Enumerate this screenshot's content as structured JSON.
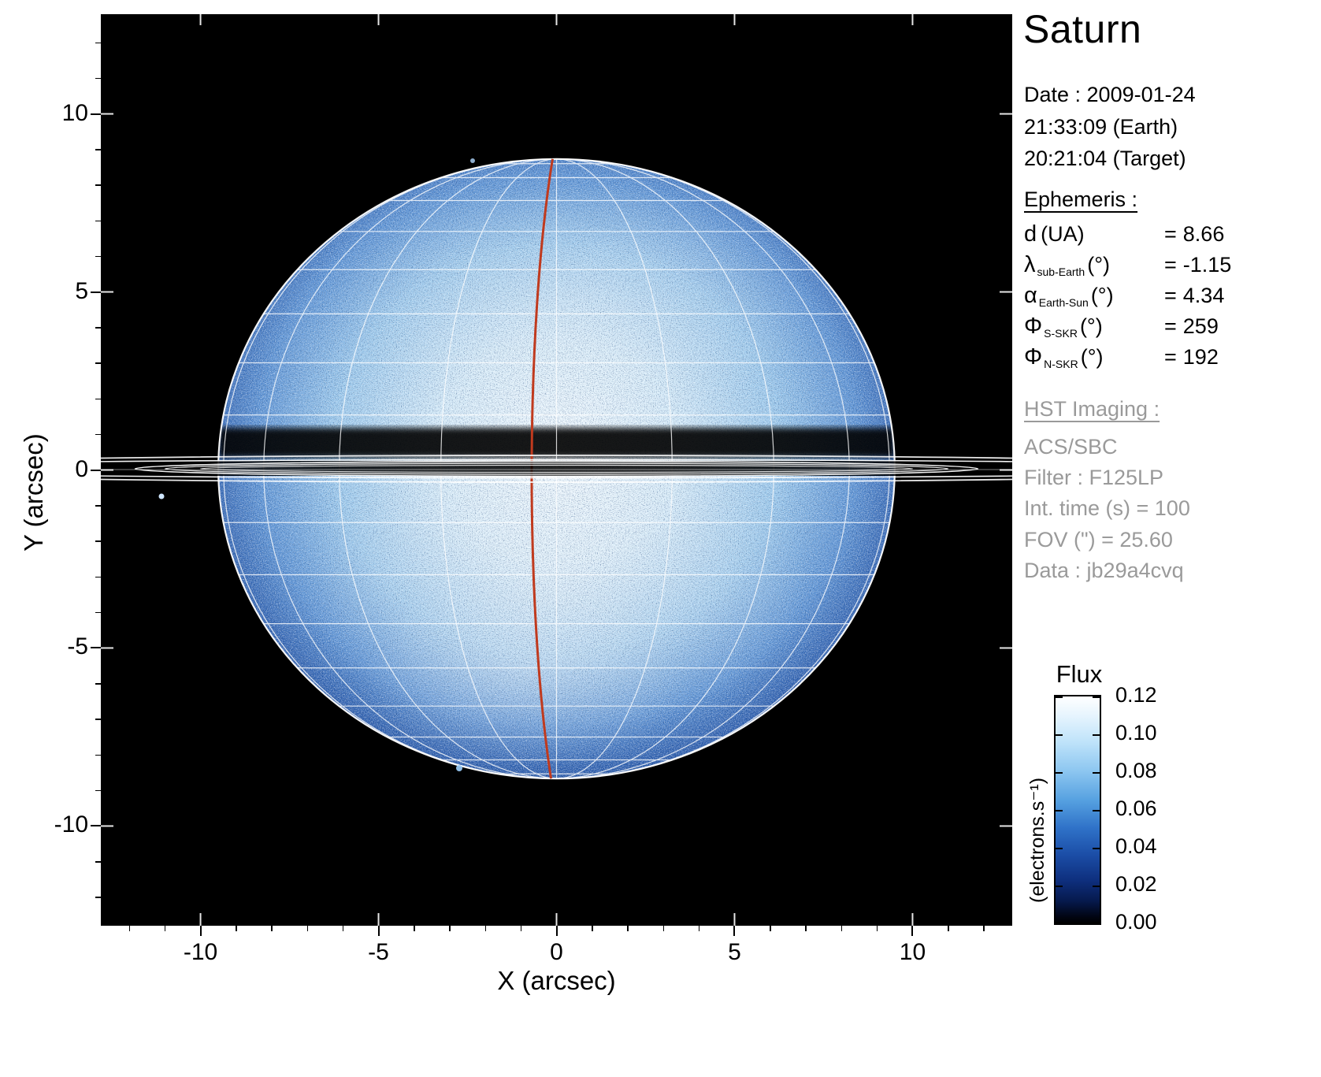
{
  "title": "Saturn",
  "observation": {
    "date": "Date : 2009-01-24",
    "earth_time": "21:33:09 (Earth)",
    "target_time": "20:21:04 (Target)"
  },
  "ephemeris": {
    "heading": "Ephemeris :",
    "rows": [
      {
        "sym": "d",
        "sub": "",
        "unit": "(UA)",
        "eq": "=",
        "val": "8.66"
      },
      {
        "sym": "λ",
        "sub": "sub-Earth",
        "unit": "(°)",
        "eq": "=",
        "val": "-1.15"
      },
      {
        "sym": "α",
        "sub": "Earth-Sun",
        "unit": "(°)",
        "eq": "=",
        "val": "4.34"
      },
      {
        "sym": "Φ",
        "sub": "S-SKR",
        "unit": "(°)",
        "eq": "=",
        "val": "259"
      },
      {
        "sym": "Φ",
        "sub": "N-SKR",
        "unit": "(°)",
        "eq": "=",
        "val": "192"
      }
    ]
  },
  "hst": {
    "heading": "HST Imaging :",
    "lines": [
      "ACS/SBC",
      "Filter : F125LP",
      "Int. time (s) = 100",
      "FOV (\") = 25.60",
      "Data : jb29a4cvq"
    ]
  },
  "axes": {
    "xlabel": "X (arcsec)",
    "ylabel": "Y (arcsec)"
  },
  "colorbar": {
    "title": "Flux",
    "unit": "(electrons.s⁻¹)",
    "ticks": [
      "0.12",
      "0.10",
      "0.08",
      "0.06",
      "0.04",
      "0.02",
      "0.00"
    ]
  },
  "chart_data": {
    "type": "image",
    "title": "Saturn",
    "description": "HST far-UV image of Saturn with nearly edge-on rings, planetocentric latitude/longitude grid overlay and red reference meridian",
    "x": {
      "label": "X (arcsec)",
      "range": [
        -12.8,
        12.8
      ],
      "ticks": [
        -10,
        -5,
        0,
        5,
        10
      ]
    },
    "y": {
      "label": "Y (arcsec)",
      "range": [
        -12.8,
        12.8
      ],
      "ticks": [
        -10,
        -5,
        0,
        5,
        10
      ]
    },
    "flux": {
      "label": "Flux",
      "unit": "(electrons.s⁻¹)",
      "min": 0.0,
      "max": 0.12,
      "tick_step": 0.02
    },
    "planet": {
      "equatorial_radius_arcsec": 9.5,
      "polar_radius_arcsec": 8.7,
      "sub_earth_latitude_deg": -1.15,
      "grid_lat_step_deg": 10,
      "grid_lon_step_deg": 20
    },
    "rings": "edge-on, ring plane opening angle -1.15 deg, dark ring/shadow band just north of equator",
    "ephemeris_values": {
      "d_UA": 8.66,
      "lambda_sub_earth_deg": -1.15,
      "alpha_earth_sun_deg": 4.34,
      "phi_S_SKR_deg": 259,
      "phi_N_SKR_deg": 192
    },
    "colors": {
      "palette": [
        "#000000",
        "#0a2456",
        "#123a7e",
        "#2a5cae",
        "#5b93d6",
        "#9ccaee",
        "#d6ecfa",
        "#ffffff"
      ],
      "grid": "#ffffff",
      "meridian_red": "#c03a1e"
    }
  }
}
